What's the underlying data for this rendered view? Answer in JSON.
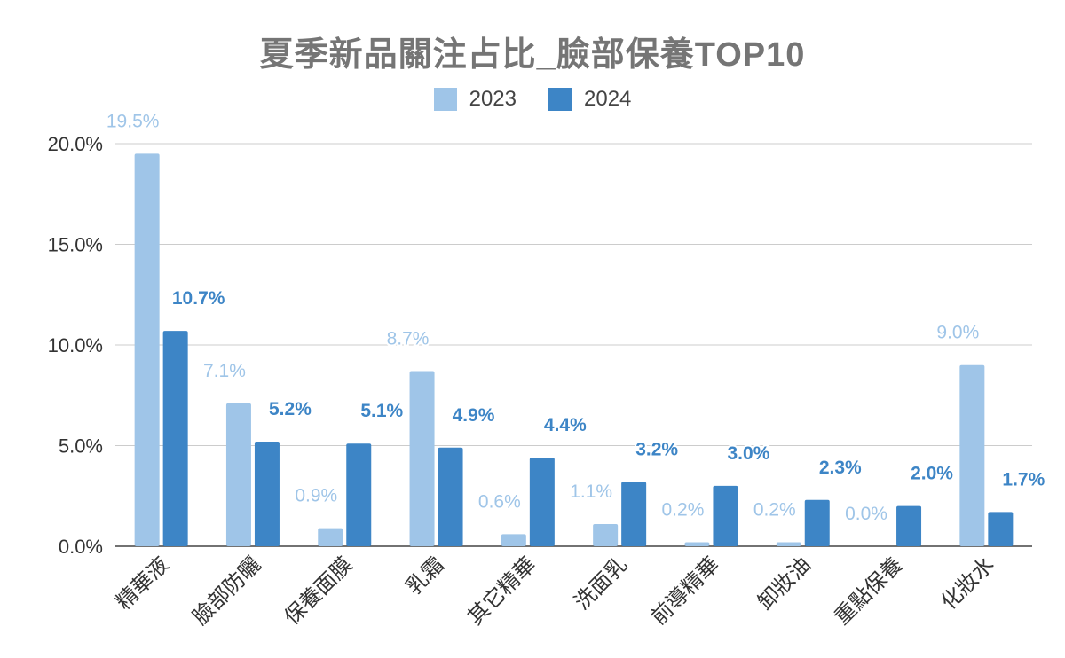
{
  "chart_data": {
    "type": "bar",
    "title": "夏季新品關注占比_臉部保養TOP10",
    "xlabel": "",
    "ylabel": "",
    "ylim": [
      0,
      20
    ],
    "yticks": [
      "0.0%",
      "5.0%",
      "10.0%",
      "15.0%",
      "20.0%"
    ],
    "categories": [
      "精華液",
      "臉部防曬",
      "保養面膜",
      "乳霜",
      "其它精華",
      "洗面乳",
      "前導精華",
      "卸妝油",
      "重點保養",
      "化妝水"
    ],
    "series": [
      {
        "name": "2023",
        "color": "#9fc5e8",
        "values": [
          19.5,
          7.1,
          0.9,
          8.7,
          0.6,
          1.1,
          0.2,
          0.2,
          0.0,
          9.0
        ],
        "labels": [
          "19.5%",
          "7.1%",
          "0.9%",
          "8.7%",
          "0.6%",
          "1.1%",
          "0.2%",
          "0.2%",
          "0.0%",
          "9.0%"
        ]
      },
      {
        "name": "2024",
        "color": "#3d85c6",
        "values": [
          10.7,
          5.2,
          5.1,
          4.9,
          4.4,
          3.2,
          3.0,
          2.3,
          2.0,
          1.7
        ],
        "labels": [
          "10.7%",
          "5.2%",
          "5.1%",
          "4.9%",
          "4.4%",
          "3.2%",
          "3.0%",
          "2.3%",
          "2.0%",
          "1.7%"
        ]
      }
    ],
    "legend": "top-center",
    "grid": true
  }
}
